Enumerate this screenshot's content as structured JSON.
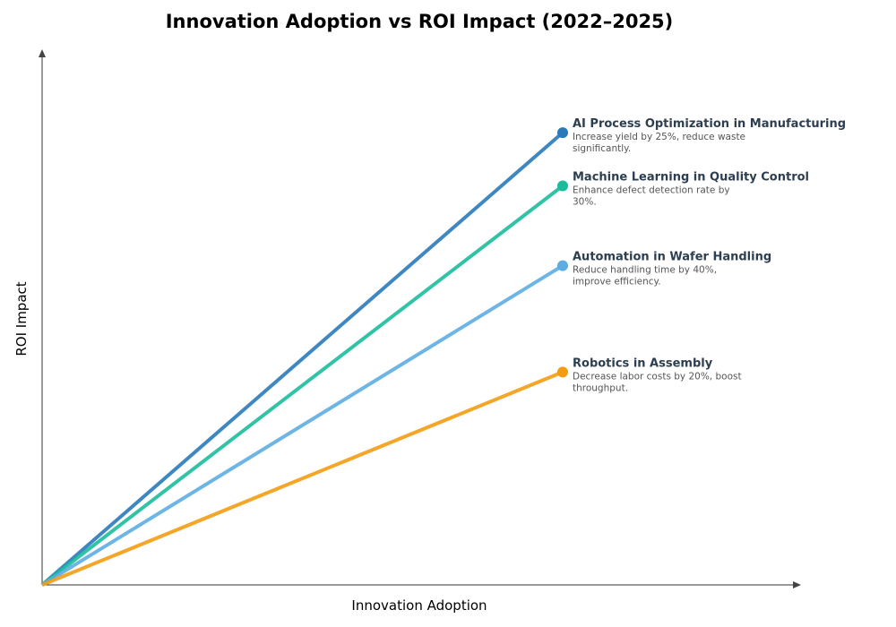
{
  "chart_data": {
    "type": "line",
    "title": "Innovation Adoption vs ROI Impact (2022–2025)",
    "xlabel": "Innovation Adoption",
    "ylabel": "ROI Impact",
    "xlim": [
      0,
      1
    ],
    "ylim": [
      0,
      1
    ],
    "grid": false,
    "legend": "inline-right",
    "series": [
      {
        "name": "AI Process Optimization in Manufacturing",
        "desc": [
          "Increase yield by 25%, reduce waste",
          "significantly."
        ],
        "x": [
          0,
          0.7
        ],
        "y": [
          0,
          0.85
        ],
        "color": "#2a7ab9"
      },
      {
        "name": "Machine Learning in Quality Control",
        "desc": [
          "Enhance defect detection rate by",
          "30%."
        ],
        "x": [
          0,
          0.7
        ],
        "y": [
          0,
          0.75
        ],
        "color": "#1abc9c"
      },
      {
        "name": "Automation in Wafer Handling",
        "desc": [
          "Reduce handling time by 40%,",
          "improve efficiency."
        ],
        "x": [
          0,
          0.7
        ],
        "y": [
          0,
          0.6
        ],
        "color": "#5dade2"
      },
      {
        "name": "Robotics in Assembly",
        "desc": [
          "Decrease labor costs by 20%, boost",
          "throughput."
        ],
        "x": [
          0,
          0.7
        ],
        "y": [
          0,
          0.4
        ],
        "color": "#f39c12"
      }
    ]
  }
}
